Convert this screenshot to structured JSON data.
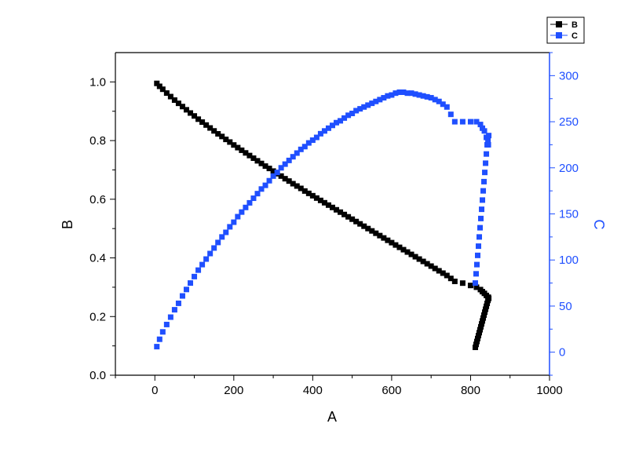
{
  "chart_data": {
    "type": "scatter",
    "xlabel": "A",
    "ylabel_left": "B",
    "ylabel_right": "C",
    "xlim": [
      -100,
      1000
    ],
    "ylim_left": [
      0,
      1.1
    ],
    "ylim_right": [
      -25,
      325
    ],
    "x_ticks": [
      0,
      200,
      400,
      600,
      800,
      1000
    ],
    "y_left_ticks": [
      0.0,
      0.2,
      0.4,
      0.6,
      0.8,
      1.0
    ],
    "y_right_ticks": [
      0,
      50,
      100,
      150,
      200,
      250,
      300
    ],
    "x_tick_labels": [
      "0",
      "200",
      "400",
      "600",
      "800",
      "1000"
    ],
    "y_left_tick_labels": [
      "0.0",
      "0.2",
      "0.4",
      "0.6",
      "0.8",
      "1.0"
    ],
    "y_right_tick_labels": [
      "0",
      "50",
      "100",
      "150",
      "200",
      "250",
      "300"
    ],
    "grid": false,
    "legend_position": "top-right-outside",
    "series": [
      {
        "name": "B",
        "axis": "left",
        "color": "#000000",
        "x": [
          5,
          12,
          20,
          30,
          40,
          50,
          60,
          70,
          80,
          90,
          100,
          110,
          120,
          130,
          140,
          150,
          160,
          170,
          180,
          190,
          200,
          210,
          220,
          230,
          240,
          250,
          260,
          270,
          280,
          290,
          300,
          310,
          320,
          330,
          340,
          350,
          360,
          370,
          380,
          390,
          400,
          410,
          420,
          430,
          440,
          450,
          460,
          470,
          480,
          490,
          500,
          510,
          520,
          530,
          540,
          550,
          560,
          570,
          580,
          590,
          600,
          610,
          620,
          630,
          640,
          650,
          660,
          670,
          680,
          690,
          700,
          710,
          720,
          730,
          740,
          750,
          760,
          780,
          800,
          815,
          825,
          830,
          835,
          840,
          845,
          812,
          814,
          816,
          818,
          820,
          822,
          824,
          826,
          828,
          830,
          832,
          834,
          836,
          838,
          840,
          842,
          844,
          846
        ],
        "y": [
          0.995,
          0.985,
          0.975,
          0.962,
          0.95,
          0.938,
          0.927,
          0.916,
          0.905,
          0.894,
          0.884,
          0.873,
          0.863,
          0.853,
          0.843,
          0.833,
          0.823,
          0.814,
          0.804,
          0.795,
          0.785,
          0.776,
          0.767,
          0.758,
          0.749,
          0.74,
          0.731,
          0.722,
          0.713,
          0.705,
          0.696,
          0.687,
          0.679,
          0.67,
          0.662,
          0.653,
          0.645,
          0.637,
          0.628,
          0.62,
          0.612,
          0.604,
          0.596,
          0.588,
          0.58,
          0.572,
          0.564,
          0.556,
          0.548,
          0.54,
          0.532,
          0.524,
          0.516,
          0.508,
          0.5,
          0.492,
          0.484,
          0.476,
          0.468,
          0.46,
          0.452,
          0.444,
          0.436,
          0.428,
          0.42,
          0.412,
          0.404,
          0.396,
          0.388,
          0.38,
          0.372,
          0.364,
          0.356,
          0.348,
          0.34,
          0.33,
          0.32,
          0.314,
          0.306,
          0.3,
          0.292,
          0.285,
          0.279,
          0.272,
          0.266,
          0.095,
          0.105,
          0.115,
          0.125,
          0.135,
          0.145,
          0.155,
          0.165,
          0.175,
          0.185,
          0.195,
          0.205,
          0.215,
          0.225,
          0.235,
          0.245,
          0.255,
          0.262
        ]
      },
      {
        "name": "C",
        "axis": "right",
        "color": "#1f4fff",
        "x": [
          5,
          12,
          20,
          30,
          40,
          50,
          60,
          70,
          80,
          90,
          100,
          110,
          120,
          130,
          140,
          150,
          160,
          170,
          180,
          190,
          200,
          210,
          220,
          230,
          240,
          250,
          260,
          270,
          280,
          290,
          300,
          310,
          320,
          330,
          340,
          350,
          360,
          370,
          380,
          390,
          400,
          410,
          420,
          430,
          440,
          450,
          460,
          470,
          480,
          490,
          500,
          510,
          520,
          530,
          540,
          550,
          560,
          570,
          580,
          590,
          600,
          610,
          620,
          630,
          640,
          650,
          660,
          670,
          680,
          690,
          700,
          710,
          720,
          730,
          740,
          750,
          760,
          780,
          800,
          815,
          825,
          830,
          835,
          840,
          845,
          812,
          814,
          816,
          818,
          820,
          822,
          824,
          826,
          828,
          830,
          832,
          834,
          836,
          838,
          840,
          842,
          844,
          846
        ],
        "y": [
          6,
          14,
          22,
          30,
          38,
          46,
          53,
          61,
          68,
          75,
          82,
          89,
          95,
          101,
          107,
          113,
          119,
          125,
          130,
          136,
          141,
          147,
          152,
          157,
          162,
          167,
          172,
          177,
          181,
          186,
          191,
          195,
          200,
          204,
          208,
          212,
          216,
          220,
          223,
          227,
          230,
          233,
          237,
          240,
          243,
          246,
          249,
          251,
          254,
          257,
          259,
          262,
          264,
          266,
          268,
          270,
          272,
          274,
          276,
          278,
          279,
          281,
          282,
          282,
          281,
          281,
          280,
          279,
          278,
          277,
          276,
          274,
          272,
          269,
          266,
          258,
          250,
          250,
          250,
          250,
          247,
          243,
          240,
          233,
          225,
          75,
          85,
          95,
          105,
          115,
          125,
          135,
          145,
          155,
          165,
          175,
          185,
          195,
          205,
          215,
          225,
          230,
          235
        ]
      }
    ]
  }
}
